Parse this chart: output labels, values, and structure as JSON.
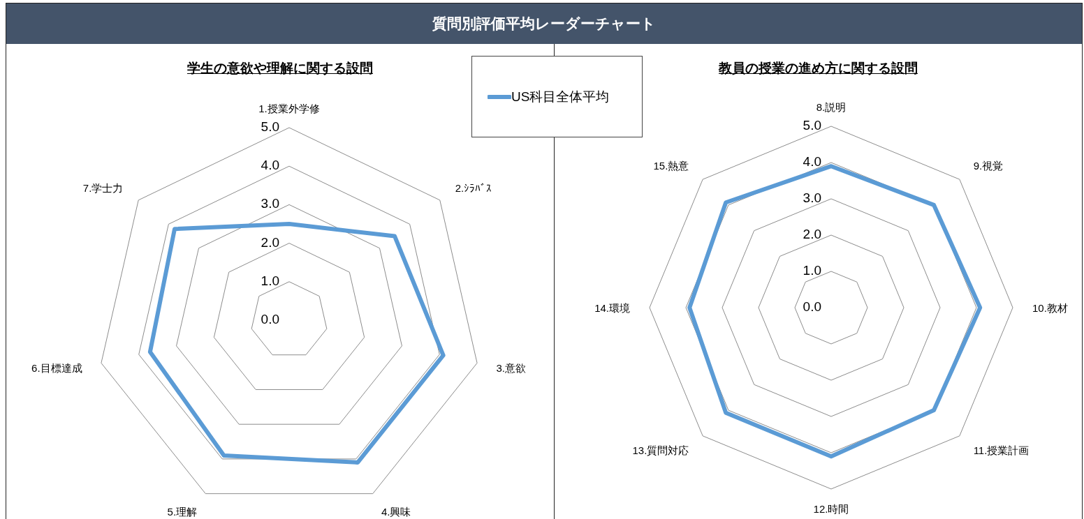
{
  "chart_data": [
    {
      "type": "radar",
      "title": "質問別評価平均レーダーチャート",
      "subtitle": "学生の意欲や理解に関する設問",
      "categories": [
        "1.授業外学修",
        "2.ｼﾗﾊﾞｽ",
        "3.意欲",
        "4.興味",
        "5.理解",
        "6.目標達成",
        "7.学士力"
      ],
      "series": [
        {
          "name": "US科目全体平均",
          "color": "#5b9bd5",
          "values": [
            2.5,
            3.5,
            4.1,
            4.1,
            3.9,
            3.7,
            3.8
          ]
        }
      ],
      "ylim": [
        0,
        5
      ],
      "yticks": [
        {
          "value": 0,
          "label": "0.0"
        },
        {
          "value": 1,
          "label": "1.0"
        },
        {
          "value": 2,
          "label": "2.0"
        },
        {
          "value": 3,
          "label": "3.0"
        },
        {
          "value": 4,
          "label": "4.0"
        },
        {
          "value": 5,
          "label": "5.0"
        }
      ],
      "grid": true,
      "legend": "top right",
      "marker": "none"
    },
    {
      "type": "radar",
      "subtitle": "教員の授業の進め方に関する設問",
      "categories": [
        "8.説明",
        "9.視覚",
        "10.教材",
        "11.授業計画",
        "12.時間",
        "13.質問対応",
        "14.環境",
        "15.熱意"
      ],
      "series": [
        {
          "color": "#5b9bd5",
          "values": [
            3.9,
            4.0,
            4.1,
            4.0,
            4.1,
            4.1,
            3.9,
            4.1
          ]
        }
      ],
      "ylim": [
        0,
        5
      ],
      "yticks": [
        {
          "value": 0,
          "label": "0.0"
        },
        {
          "value": 1,
          "label": "1.0"
        },
        {
          "value": 2,
          "label": "2.0"
        },
        {
          "value": 3,
          "label": "3.0"
        },
        {
          "value": 4,
          "label": "4.0"
        },
        {
          "value": 5,
          "label": "5.0"
        }
      ],
      "grid": true,
      "marker": "none"
    }
  ]
}
